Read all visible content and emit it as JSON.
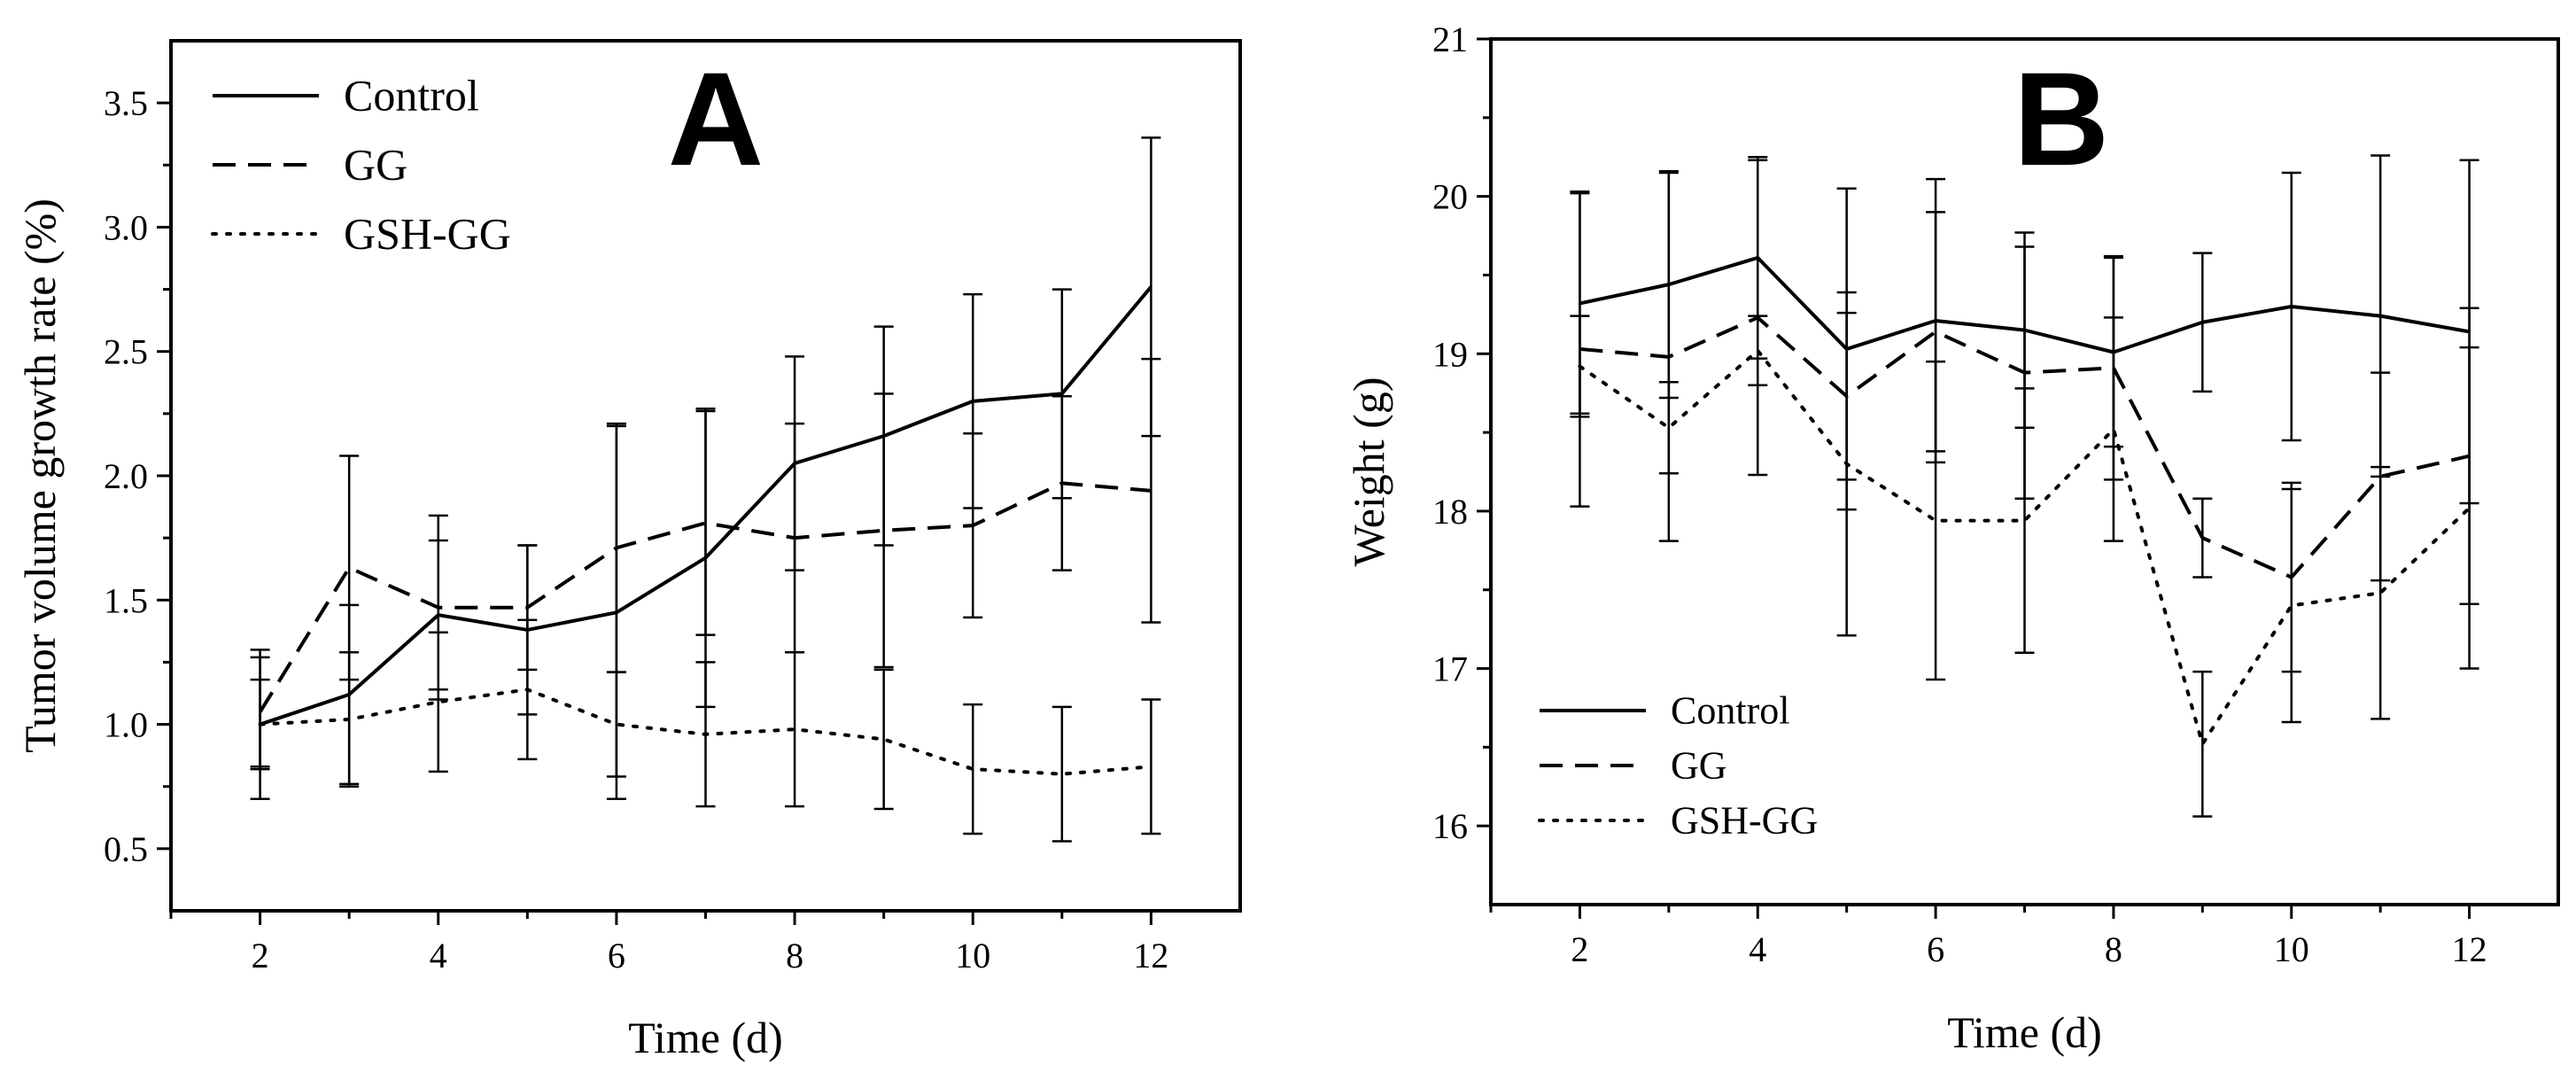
{
  "chart_data": [
    {
      "type": "line",
      "panel_label": "A",
      "xlabel": "Time (d)",
      "ylabel": "Tumor volume growth rate (%)",
      "xlim": [
        1,
        13
      ],
      "ylim": [
        0.25,
        3.75
      ],
      "xticks": [
        2,
        4,
        6,
        8,
        10,
        12
      ],
      "yticks": [
        0.5,
        1.0,
        1.5,
        2.0,
        2.5,
        3.0,
        3.5
      ],
      "ytick_labels": [
        "0.5",
        "1.0",
        "1.5",
        "2.0",
        "2.5",
        "3.0",
        "3.5"
      ],
      "legend_position": "top-left",
      "x": [
        2,
        3,
        4,
        5,
        6,
        7,
        8,
        9,
        10,
        11,
        12
      ],
      "series": [
        {
          "name": "Control",
          "style": "solid",
          "values": [
            1.0,
            1.12,
            1.44,
            1.38,
            1.45,
            1.67,
            2.05,
            2.16,
            2.3,
            2.33,
            2.76
          ],
          "errors": [
            0.3,
            0.36,
            0.3,
            0.34,
            0.75,
            0.6,
            0.43,
            0.44,
            0.43,
            0.42,
            0.6
          ]
        },
        {
          "name": "GG",
          "style": "dashed",
          "values": [
            1.05,
            1.63,
            1.47,
            1.47,
            1.71,
            1.81,
            1.75,
            1.78,
            1.8,
            1.97,
            1.94
          ],
          "errors": [
            0.22,
            0.45,
            0.37,
            0.25,
            0.5,
            0.45,
            0.46,
            0.55,
            0.37,
            0.35,
            0.53
          ]
        },
        {
          "name": "GSH-GG",
          "style": "dotted",
          "values": [
            1.0,
            1.02,
            1.09,
            1.14,
            1.0,
            0.96,
            0.98,
            0.94,
            0.82,
            0.8,
            0.83
          ],
          "errors": [
            0.18,
            0.27,
            0.28,
            0.28,
            0.21,
            0.29,
            0.31,
            0.28,
            0.26,
            0.27,
            0.27
          ]
        }
      ]
    },
    {
      "type": "line",
      "panel_label": "B",
      "xlabel": "Time (d)",
      "ylabel": "Weight (g)",
      "xlim": [
        1,
        13
      ],
      "ylim": [
        15.5,
        21
      ],
      "xticks": [
        2,
        4,
        6,
        8,
        10,
        12
      ],
      "yticks": [
        16,
        17,
        18,
        19,
        20,
        21
      ],
      "ytick_labels": [
        "16",
        "17",
        "18",
        "19",
        "20",
        "21"
      ],
      "legend_position": "bottom-left",
      "x": [
        2,
        3,
        4,
        5,
        6,
        7,
        8,
        9,
        10,
        11,
        12
      ],
      "series": [
        {
          "name": "Control",
          "style": "solid",
          "values": [
            19.32,
            19.44,
            19.61,
            19.03,
            19.21,
            19.15,
            19.01,
            19.2,
            19.3,
            19.24,
            19.14
          ],
          "errors": [
            0.7,
            0.72,
            0.64,
            1.02,
            0.9,
            0.62,
            0.6,
            0.44,
            0.85,
            1.02,
            1.09
          ]
        },
        {
          "name": "GG",
          "style": "dashed",
          "values": [
            19.03,
            18.98,
            19.23,
            18.73,
            19.14,
            18.88,
            18.91,
            17.83,
            17.58,
            18.22,
            18.35
          ],
          "errors": [
            1.0,
            1.17,
            1.0,
            0.53,
            0.76,
            0.8,
            0.71,
            0.25,
            0.6,
            0.66,
            0.94
          ]
        },
        {
          "name": "GSH-GG",
          "style": "dotted",
          "values": [
            18.92,
            18.53,
            19.02,
            18.3,
            17.94,
            17.94,
            18.52,
            16.52,
            17.4,
            17.48,
            18.02
          ],
          "errors": [
            0.32,
            0.29,
            0.22,
            1.09,
            1.01,
            0.84,
            0.71,
            0.46,
            0.74,
            0.8,
            1.02
          ]
        }
      ]
    }
  ]
}
